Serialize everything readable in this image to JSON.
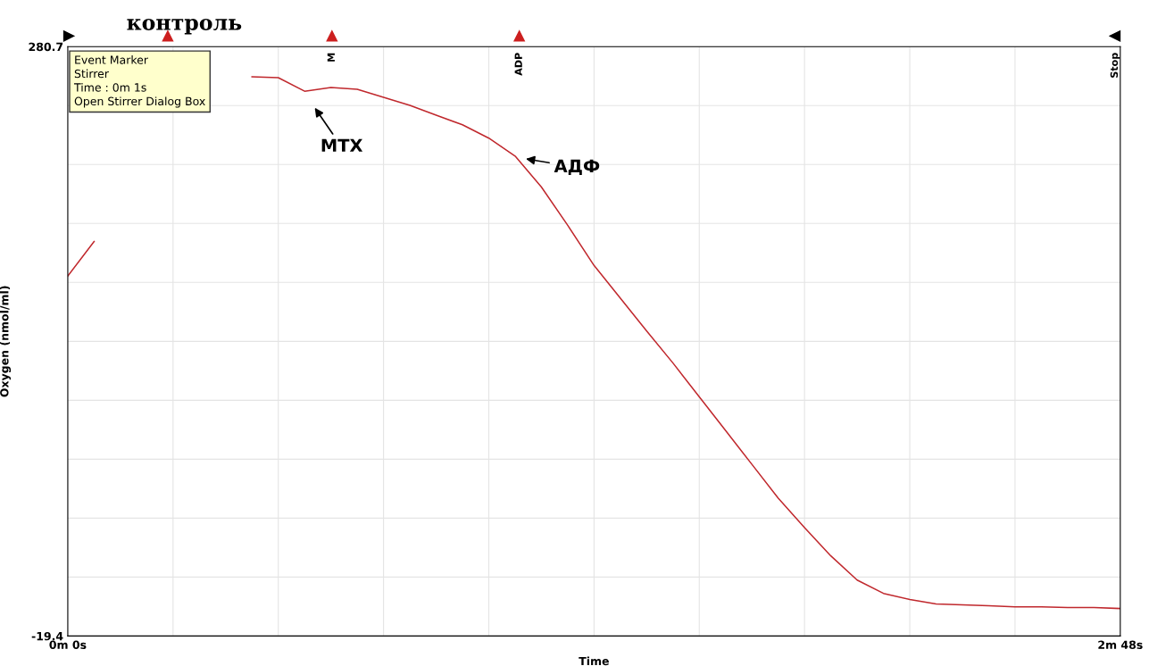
{
  "chart_data": {
    "type": "line",
    "xlabel": "Time",
    "ylabel": "Oxygen (nmol/ml)",
    "categories": [
      "0m 0s",
      null,
      null,
      null,
      null,
      null,
      null,
      null,
      null,
      null,
      null,
      null,
      null,
      null,
      null,
      null,
      null,
      null,
      null,
      null,
      null,
      null,
      null,
      null,
      null,
      null,
      null,
      null,
      null,
      null,
      null,
      null,
      null,
      null,
      null,
      null,
      null,
      null,
      null,
      null,
      "2m 48s"
    ],
    "series": [
      {
        "color": "#c0282d",
        "values": [
          163.9,
          181.5,
          null,
          null,
          null,
          null,
          null,
          265.3,
          264.9,
          258.0,
          259.9,
          259.0,
          254.9,
          250.8,
          245.8,
          240.9,
          234.1,
          225.0,
          209.2,
          189.7,
          169.3,
          152.6,
          135.9,
          119.6,
          102.4,
          85.2,
          68.0,
          50.8,
          35.8,
          21.4,
          9.1,
          2.3,
          -0.8,
          -3.1,
          -3.5,
          -4.0,
          -4.5,
          -4.5,
          -4.9,
          -4.9,
          -5.4
        ]
      }
    ],
    "ylim": [
      -19.4,
      280.7
    ],
    "yticks": [
      -19.4,
      {
        "value": 10.61,
        "label": null
      },
      {
        "value": 40.62,
        "label": null
      },
      {
        "value": 70.63,
        "label": null
      },
      {
        "value": 100.64,
        "label": null
      },
      {
        "value": 130.65,
        "label": null
      },
      {
        "value": 160.66,
        "label": null
      },
      {
        "value": 190.67,
        "label": null
      },
      {
        "value": 220.68,
        "label": null
      },
      {
        "value": 250.69,
        "label": null
      },
      280.7
    ],
    "grid": true,
    "annotations": [
      "контроль",
      "Event Marker\nStirrer\nTime : 0m 1s\nOpen Stirrer Dialog Box",
      "M",
      "ADP",
      "Stop",
      "МТХ",
      "АДФ"
    ]
  }
}
